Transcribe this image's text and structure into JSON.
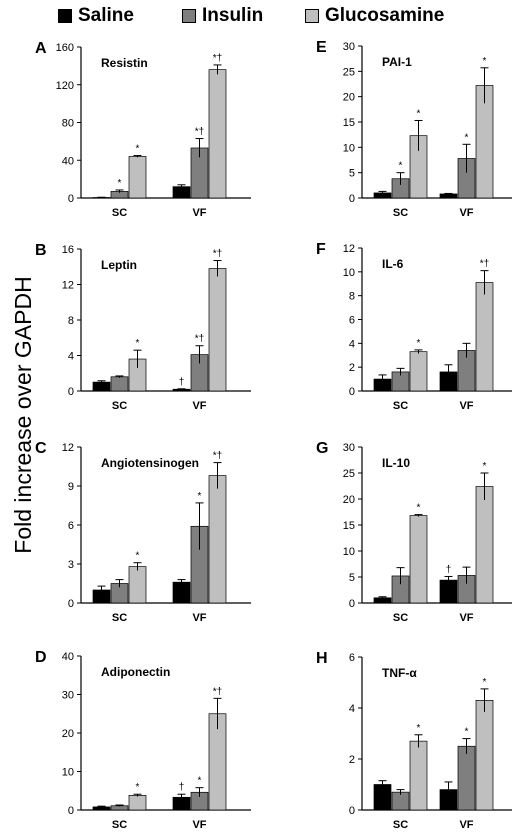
{
  "legend": [
    {
      "label": "Saline",
      "color": "#000000"
    },
    {
      "label": "Insulin",
      "color": "#7f7f7f"
    },
    {
      "label": "Glucosamine",
      "color": "#bfbfbf"
    }
  ],
  "ylabel": "Fold increase over GAPDH",
  "chart_data": [
    {
      "letter": "A",
      "type": "bar",
      "title": "Resistin",
      "categories": [
        "SC",
        "VF"
      ],
      "yticks": [
        0,
        40,
        80,
        120,
        160
      ],
      "ylim": [
        0,
        160
      ],
      "series": [
        {
          "name": "Saline",
          "values": [
            0.5,
            12
          ],
          "err": [
            0.3,
            2
          ]
        },
        {
          "name": "Insulin",
          "values": [
            7,
            53
          ],
          "err": [
            1.5,
            10
          ]
        },
        {
          "name": "Glucosamine",
          "values": [
            44,
            136
          ],
          "err": [
            1,
            5
          ]
        }
      ],
      "annotations": [
        [
          "",
          ""
        ],
        [
          "*",
          "*†"
        ],
        [
          "*",
          "*†"
        ]
      ],
      "dagger": [
        "",
        "†"
      ]
    },
    {
      "letter": "B",
      "type": "bar",
      "title": "Leptin",
      "categories": [
        "SC",
        "VF"
      ],
      "yticks": [
        0,
        4,
        8,
        12,
        16
      ],
      "ylim": [
        0,
        16
      ],
      "series": [
        {
          "name": "Saline",
          "values": [
            1.0,
            0.2
          ],
          "err": [
            0.15,
            0.05
          ]
        },
        {
          "name": "Insulin",
          "values": [
            1.6,
            4.1
          ],
          "err": [
            0.1,
            1.0
          ]
        },
        {
          "name": "Glucosamine",
          "values": [
            3.6,
            13.8
          ],
          "err": [
            1.0,
            0.9
          ]
        }
      ],
      "annotations": [
        [
          "",
          "†"
        ],
        [
          "",
          "*†"
        ],
        [
          "*",
          "*†"
        ]
      ]
    },
    {
      "letter": "C",
      "type": "bar",
      "title": "Angiotensinogen",
      "categories": [
        "SC",
        "VF"
      ],
      "yticks": [
        0,
        3,
        6,
        9,
        12
      ],
      "ylim": [
        0,
        12
      ],
      "series": [
        {
          "name": "Saline",
          "values": [
            1.0,
            1.6
          ],
          "err": [
            0.3,
            0.2
          ]
        },
        {
          "name": "Insulin",
          "values": [
            1.5,
            5.9
          ],
          "err": [
            0.3,
            1.8
          ]
        },
        {
          "name": "Glucosamine",
          "values": [
            2.8,
            9.8
          ],
          "err": [
            0.3,
            1.0
          ]
        }
      ],
      "annotations": [
        [
          "",
          ""
        ],
        [
          "",
          "*"
        ],
        [
          "*",
          "*†"
        ]
      ]
    },
    {
      "letter": "D",
      "type": "bar",
      "title": "Adiponectin",
      "categories": [
        "SC",
        "VF"
      ],
      "yticks": [
        0,
        10,
        20,
        30,
        40
      ],
      "ylim": [
        0,
        40
      ],
      "series": [
        {
          "name": "Saline",
          "values": [
            0.8,
            3.3
          ],
          "err": [
            0.2,
            0.8
          ]
        },
        {
          "name": "Insulin",
          "values": [
            1.1,
            4.6
          ],
          "err": [
            0.2,
            1.2
          ]
        },
        {
          "name": "Glucosamine",
          "values": [
            3.8,
            25
          ],
          "err": [
            0.3,
            4
          ]
        }
      ],
      "annotations": [
        [
          "",
          "†"
        ],
        [
          "",
          "*"
        ],
        [
          "*",
          "*†"
        ]
      ]
    },
    {
      "letter": "E",
      "type": "bar",
      "title": "PAI-1",
      "categories": [
        "SC",
        "VF"
      ],
      "yticks": [
        0,
        5,
        10,
        15,
        20,
        25,
        30
      ],
      "ylim": [
        0,
        30
      ],
      "series": [
        {
          "name": "Saline",
          "values": [
            1.0,
            0.8
          ],
          "err": [
            0.3,
            0.1
          ]
        },
        {
          "name": "Insulin",
          "values": [
            3.8,
            7.8
          ],
          "err": [
            1.2,
            2.8
          ]
        },
        {
          "name": "Glucosamine",
          "values": [
            12.3,
            22.2
          ],
          "err": [
            3.0,
            3.5
          ]
        }
      ],
      "annotations": [
        [
          "",
          ""
        ],
        [
          "*",
          "*"
        ],
        [
          "*",
          "*"
        ]
      ]
    },
    {
      "letter": "F",
      "type": "bar",
      "title": "IL-6",
      "categories": [
        "SC",
        "VF"
      ],
      "yticks": [
        0,
        2,
        4,
        6,
        8,
        10,
        12
      ],
      "ylim": [
        0,
        12
      ],
      "series": [
        {
          "name": "Saline",
          "values": [
            1.0,
            1.6
          ],
          "err": [
            0.35,
            0.6
          ]
        },
        {
          "name": "Insulin",
          "values": [
            1.6,
            3.4
          ],
          "err": [
            0.3,
            0.6
          ]
        },
        {
          "name": "Glucosamine",
          "values": [
            3.3,
            9.1
          ],
          "err": [
            0.15,
            1.0
          ]
        }
      ],
      "annotations": [
        [
          "",
          ""
        ],
        [
          "",
          ""
        ],
        [
          "*",
          "*†"
        ]
      ]
    },
    {
      "letter": "G",
      "type": "bar",
      "title": "IL-10",
      "categories": [
        "SC",
        "VF"
      ],
      "yticks": [
        0,
        5,
        10,
        15,
        20,
        25,
        30
      ],
      "ylim": [
        0,
        30
      ],
      "series": [
        {
          "name": "Saline",
          "values": [
            1.0,
            4.4
          ],
          "err": [
            0.2,
            0.7
          ]
        },
        {
          "name": "Insulin",
          "values": [
            5.2,
            5.3
          ],
          "err": [
            1.6,
            1.6
          ]
        },
        {
          "name": "Glucosamine",
          "values": [
            16.8,
            22.4
          ],
          "err": [
            0.2,
            2.6
          ]
        }
      ],
      "annotations": [
        [
          "",
          "†"
        ],
        [
          "",
          ""
        ],
        [
          "*",
          "*"
        ]
      ]
    },
    {
      "letter": "H",
      "type": "bar",
      "title": "TNF-α",
      "categories": [
        "SC",
        "VF"
      ],
      "yticks": [
        0,
        2,
        4,
        6
      ],
      "ylim": [
        0,
        6
      ],
      "series": [
        {
          "name": "Saline",
          "values": [
            1.0,
            0.8
          ],
          "err": [
            0.15,
            0.3
          ]
        },
        {
          "name": "Insulin",
          "values": [
            0.7,
            2.5
          ],
          "err": [
            0.1,
            0.3
          ]
        },
        {
          "name": "Glucosamine",
          "values": [
            2.7,
            4.3
          ],
          "err": [
            0.25,
            0.45
          ]
        }
      ],
      "annotations": [
        [
          "",
          ""
        ],
        [
          "",
          "*"
        ],
        [
          "*",
          "*"
        ]
      ]
    }
  ]
}
